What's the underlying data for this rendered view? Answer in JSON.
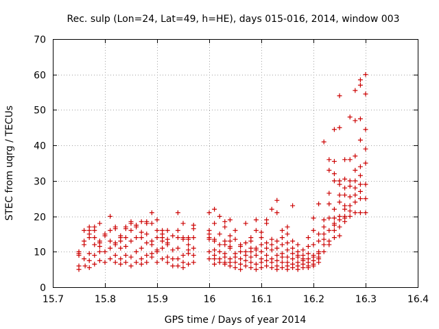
{
  "chart_data": {
    "type": "scatter",
    "title": "Rec. sulp (Lon=24, Lat=49, h=HE), days 015-016, 2014, window 003",
    "xlabel": "GPS time / Days of year 2014",
    "ylabel": "STEC from uqrg / TECUs",
    "xlim": [
      15.7,
      16.4
    ],
    "ylim": [
      0,
      70
    ],
    "x_ticks": [
      15.7,
      15.8,
      15.9,
      16.0,
      16.1,
      16.2,
      16.3,
      16.4
    ],
    "x_tick_labels": [
      "15.7",
      "15.8",
      "15.9",
      "16",
      "16.1",
      "16.2",
      "16.3",
      "16.4"
    ],
    "y_ticks": [
      0,
      10,
      20,
      30,
      40,
      50,
      60,
      70
    ],
    "y_tick_labels": [
      "0",
      "10",
      "20",
      "30",
      "40",
      "50",
      "60",
      "70"
    ],
    "grid": true,
    "marker": "plus",
    "color": "#cc0000",
    "points": [
      [
        15.75,
        5.0
      ],
      [
        15.75,
        6.0
      ],
      [
        15.75,
        9.0
      ],
      [
        15.75,
        9.5
      ],
      [
        15.75,
        10.0
      ],
      [
        15.76,
        8.0
      ],
      [
        15.76,
        12.0
      ],
      [
        15.76,
        13.0
      ],
      [
        15.76,
        16.0
      ],
      [
        15.762,
        6.0
      ],
      [
        15.77,
        5.5
      ],
      [
        15.77,
        7.5
      ],
      [
        15.77,
        9.5
      ],
      [
        15.77,
        14.0
      ],
      [
        15.77,
        15.0
      ],
      [
        15.77,
        16.0
      ],
      [
        15.77,
        17.0
      ],
      [
        15.78,
        6.5
      ],
      [
        15.78,
        9.0
      ],
      [
        15.78,
        14.0
      ],
      [
        15.78,
        16.0
      ],
      [
        15.78,
        17.0
      ],
      [
        15.78,
        12.0
      ],
      [
        15.79,
        7.5
      ],
      [
        15.79,
        10.0
      ],
      [
        15.79,
        11.5
      ],
      [
        15.79,
        12.5
      ],
      [
        15.79,
        13.0
      ],
      [
        15.79,
        18.0
      ],
      [
        15.8,
        7.0
      ],
      [
        15.8,
        10.0
      ],
      [
        15.8,
        14.5
      ],
      [
        15.8,
        15.0
      ],
      [
        15.81,
        8.0
      ],
      [
        15.81,
        11.0
      ],
      [
        15.81,
        13.0
      ],
      [
        15.81,
        16.0
      ],
      [
        15.81,
        20.0
      ],
      [
        15.82,
        7.0
      ],
      [
        15.82,
        9.0
      ],
      [
        15.82,
        12.0
      ],
      [
        15.82,
        12.5
      ],
      [
        15.82,
        16.5
      ],
      [
        15.82,
        17.0
      ],
      [
        15.83,
        6.5
      ],
      [
        15.83,
        8.0
      ],
      [
        15.83,
        11.0
      ],
      [
        15.83,
        13.0
      ],
      [
        15.83,
        14.0
      ],
      [
        15.83,
        14.5
      ],
      [
        15.84,
        7.0
      ],
      [
        15.84,
        9.0
      ],
      [
        15.84,
        11.5
      ],
      [
        15.84,
        16.5
      ],
      [
        15.84,
        17.0
      ],
      [
        15.84,
        14.0
      ],
      [
        15.85,
        6.0
      ],
      [
        15.85,
        8.5
      ],
      [
        15.85,
        13.0
      ],
      [
        15.85,
        16.0
      ],
      [
        15.85,
        18.0
      ],
      [
        15.85,
        18.5
      ],
      [
        15.86,
        7.0
      ],
      [
        15.86,
        10.0
      ],
      [
        15.86,
        14.0
      ],
      [
        15.86,
        17.0
      ],
      [
        15.86,
        17.5
      ],
      [
        15.87,
        6.5
      ],
      [
        15.87,
        8.0
      ],
      [
        15.87,
        11.0
      ],
      [
        15.87,
        14.0
      ],
      [
        15.87,
        15.5
      ],
      [
        15.87,
        18.5
      ],
      [
        15.88,
        7.0
      ],
      [
        15.88,
        9.0
      ],
      [
        15.88,
        12.5
      ],
      [
        15.88,
        15.0
      ],
      [
        15.88,
        18.0
      ],
      [
        15.88,
        18.5
      ],
      [
        15.89,
        8.5
      ],
      [
        15.89,
        9.5
      ],
      [
        15.89,
        12.0
      ],
      [
        15.89,
        13.0
      ],
      [
        15.89,
        18.0
      ],
      [
        15.89,
        21.0
      ],
      [
        15.9,
        7.0
      ],
      [
        15.9,
        10.0
      ],
      [
        15.9,
        10.5
      ],
      [
        15.9,
        14.0
      ],
      [
        15.9,
        16.0
      ],
      [
        15.9,
        19.0
      ],
      [
        15.91,
        8.0
      ],
      [
        15.91,
        11.0
      ],
      [
        15.91,
        13.0
      ],
      [
        15.91,
        14.0
      ],
      [
        15.91,
        16.0
      ],
      [
        15.91,
        15.0
      ],
      [
        15.92,
        7.0
      ],
      [
        15.92,
        8.5
      ],
      [
        15.92,
        12.0
      ],
      [
        15.92,
        12.5
      ],
      [
        15.92,
        13.5
      ],
      [
        15.92,
        16.0
      ],
      [
        15.93,
        8.0
      ],
      [
        15.93,
        10.5
      ],
      [
        15.93,
        14.5
      ],
      [
        15.93,
        6.0
      ],
      [
        15.94,
        6.0
      ],
      [
        15.94,
        8.0
      ],
      [
        15.94,
        11.0
      ],
      [
        15.94,
        14.0
      ],
      [
        15.94,
        21.0
      ],
      [
        15.94,
        16.0
      ],
      [
        15.95,
        5.5
      ],
      [
        15.95,
        7.0
      ],
      [
        15.95,
        9.0
      ],
      [
        15.95,
        13.5
      ],
      [
        15.95,
        14.0
      ],
      [
        15.95,
        18.0
      ],
      [
        15.96,
        6.5
      ],
      [
        15.96,
        9.5
      ],
      [
        15.96,
        10.5
      ],
      [
        15.96,
        12.0
      ],
      [
        15.96,
        13.5
      ],
      [
        15.96,
        14.0
      ],
      [
        15.97,
        7.0
      ],
      [
        15.97,
        9.0
      ],
      [
        15.97,
        11.0
      ],
      [
        15.97,
        14.0
      ],
      [
        15.97,
        16.5
      ],
      [
        15.97,
        17.5
      ],
      [
        16.0,
        8.0
      ],
      [
        16.0,
        10.0
      ],
      [
        16.0,
        13.5
      ],
      [
        16.0,
        14.0
      ],
      [
        16.0,
        15.0
      ],
      [
        16.0,
        16.0
      ],
      [
        16.0,
        21.0
      ],
      [
        16.01,
        6.5
      ],
      [
        16.01,
        8.0
      ],
      [
        16.01,
        9.0
      ],
      [
        16.01,
        10.5
      ],
      [
        16.01,
        13.0
      ],
      [
        16.01,
        13.5
      ],
      [
        16.01,
        22.0
      ],
      [
        16.01,
        18.0
      ],
      [
        16.02,
        7.0
      ],
      [
        16.02,
        8.0
      ],
      [
        16.02,
        10.0
      ],
      [
        16.02,
        12.0
      ],
      [
        16.02,
        15.0
      ],
      [
        16.02,
        20.0
      ],
      [
        16.03,
        6.5
      ],
      [
        16.03,
        7.0
      ],
      [
        16.03,
        8.5
      ],
      [
        16.03,
        9.5
      ],
      [
        16.03,
        12.0
      ],
      [
        16.03,
        13.0
      ],
      [
        16.03,
        17.0
      ],
      [
        16.03,
        18.5
      ],
      [
        16.04,
        6.0
      ],
      [
        16.04,
        7.0
      ],
      [
        16.04,
        8.0
      ],
      [
        16.04,
        11.0
      ],
      [
        16.04,
        11.5
      ],
      [
        16.04,
        13.0
      ],
      [
        16.04,
        14.5
      ],
      [
        16.04,
        19.0
      ],
      [
        16.05,
        5.5
      ],
      [
        16.05,
        7.0
      ],
      [
        16.05,
        8.5
      ],
      [
        16.05,
        9.5
      ],
      [
        16.05,
        13.5
      ],
      [
        16.05,
        16.0
      ],
      [
        16.06,
        5.0
      ],
      [
        16.06,
        6.5
      ],
      [
        16.06,
        8.0
      ],
      [
        16.06,
        10.0
      ],
      [
        16.06,
        11.5
      ],
      [
        16.06,
        12.0
      ],
      [
        16.07,
        6.0
      ],
      [
        16.07,
        7.5
      ],
      [
        16.07,
        9.0
      ],
      [
        16.07,
        10.0
      ],
      [
        16.07,
        12.5
      ],
      [
        16.07,
        18.0
      ],
      [
        16.08,
        5.5
      ],
      [
        16.08,
        7.0
      ],
      [
        16.08,
        8.5
      ],
      [
        16.08,
        10.0
      ],
      [
        16.08,
        11.0
      ],
      [
        16.08,
        13.0
      ],
      [
        16.08,
        14.0
      ],
      [
        16.09,
        5.0
      ],
      [
        16.09,
        6.5
      ],
      [
        16.09,
        9.0
      ],
      [
        16.09,
        10.5
      ],
      [
        16.09,
        11.0
      ],
      [
        16.09,
        19.0
      ],
      [
        16.09,
        16.0
      ],
      [
        16.1,
        5.5
      ],
      [
        16.1,
        7.0
      ],
      [
        16.1,
        8.0
      ],
      [
        16.1,
        10.0
      ],
      [
        16.1,
        12.0
      ],
      [
        16.1,
        14.0
      ],
      [
        16.1,
        15.5
      ],
      [
        16.11,
        6.0
      ],
      [
        16.11,
        7.5
      ],
      [
        16.11,
        9.0
      ],
      [
        16.11,
        11.0
      ],
      [
        16.11,
        12.5
      ],
      [
        16.11,
        19.0
      ],
      [
        16.11,
        18.0
      ],
      [
        16.12,
        5.5
      ],
      [
        16.12,
        7.0
      ],
      [
        16.12,
        8.0
      ],
      [
        16.12,
        10.5
      ],
      [
        16.12,
        12.0
      ],
      [
        16.12,
        13.5
      ],
      [
        16.12,
        22.0
      ],
      [
        16.13,
        5.0
      ],
      [
        16.13,
        6.0
      ],
      [
        16.13,
        7.5
      ],
      [
        16.13,
        9.0
      ],
      [
        16.13,
        11.0
      ],
      [
        16.13,
        13.0
      ],
      [
        16.13,
        21.0
      ],
      [
        16.13,
        24.5
      ],
      [
        16.14,
        5.5
      ],
      [
        16.14,
        7.0
      ],
      [
        16.14,
        8.5
      ],
      [
        16.14,
        9.5
      ],
      [
        16.14,
        12.0
      ],
      [
        16.14,
        14.0
      ],
      [
        16.14,
        16.0
      ],
      [
        16.15,
        5.0
      ],
      [
        16.15,
        6.0
      ],
      [
        16.15,
        7.0
      ],
      [
        16.15,
        8.5
      ],
      [
        16.15,
        10.5
      ],
      [
        16.15,
        12.5
      ],
      [
        16.15,
        15.0
      ],
      [
        16.15,
        17.0
      ],
      [
        16.16,
        5.5
      ],
      [
        16.16,
        6.5
      ],
      [
        16.16,
        8.0
      ],
      [
        16.16,
        9.5
      ],
      [
        16.16,
        11.0
      ],
      [
        16.16,
        13.0
      ],
      [
        16.16,
        23.0
      ],
      [
        16.17,
        5.0
      ],
      [
        16.17,
        6.0
      ],
      [
        16.17,
        7.0
      ],
      [
        16.17,
        8.5
      ],
      [
        16.17,
        9.0
      ],
      [
        16.17,
        10.0
      ],
      [
        16.17,
        12.0
      ],
      [
        16.18,
        5.5
      ],
      [
        16.18,
        6.5
      ],
      [
        16.18,
        7.5
      ],
      [
        16.18,
        8.0
      ],
      [
        16.18,
        9.0
      ],
      [
        16.18,
        10.5
      ],
      [
        16.19,
        5.5
      ],
      [
        16.19,
        6.0
      ],
      [
        16.19,
        7.0
      ],
      [
        16.19,
        8.0
      ],
      [
        16.19,
        9.5
      ],
      [
        16.19,
        11.5
      ],
      [
        16.19,
        14.0
      ],
      [
        16.2,
        6.0
      ],
      [
        16.2,
        6.5
      ],
      [
        16.2,
        7.5
      ],
      [
        16.2,
        8.5
      ],
      [
        16.2,
        9.0
      ],
      [
        16.2,
        12.0
      ],
      [
        16.2,
        16.0
      ],
      [
        16.2,
        19.5
      ],
      [
        16.21,
        7.0
      ],
      [
        16.21,
        8.0
      ],
      [
        16.21,
        8.5
      ],
      [
        16.21,
        9.5
      ],
      [
        16.21,
        10.0
      ],
      [
        16.21,
        13.0
      ],
      [
        16.21,
        15.0
      ],
      [
        16.21,
        23.5
      ],
      [
        16.22,
        10.0
      ],
      [
        16.22,
        12.0
      ],
      [
        16.22,
        13.5
      ],
      [
        16.22,
        15.0
      ],
      [
        16.22,
        17.0
      ],
      [
        16.22,
        19.0
      ],
      [
        16.22,
        41.0
      ],
      [
        16.23,
        12.0
      ],
      [
        16.23,
        13.0
      ],
      [
        16.23,
        16.0
      ],
      [
        16.23,
        19.5
      ],
      [
        16.23,
        23.5
      ],
      [
        16.23,
        26.5
      ],
      [
        16.23,
        33.0
      ],
      [
        16.23,
        36.0
      ],
      [
        16.24,
        14.0
      ],
      [
        16.24,
        16.0
      ],
      [
        16.24,
        17.5
      ],
      [
        16.24,
        18.0
      ],
      [
        16.24,
        19.5
      ],
      [
        16.24,
        22.0
      ],
      [
        16.24,
        30.0
      ],
      [
        16.24,
        32.0
      ],
      [
        16.24,
        35.5
      ],
      [
        16.24,
        44.5
      ],
      [
        16.25,
        14.5
      ],
      [
        16.25,
        17.0
      ],
      [
        16.25,
        19.0
      ],
      [
        16.25,
        20.0
      ],
      [
        16.25,
        24.0
      ],
      [
        16.25,
        26.0
      ],
      [
        16.25,
        29.0
      ],
      [
        16.25,
        30.0
      ],
      [
        16.25,
        45.0
      ],
      [
        16.25,
        54.0
      ],
      [
        16.26,
        18.5
      ],
      [
        16.26,
        19.5
      ],
      [
        16.26,
        20.0
      ],
      [
        16.26,
        22.0
      ],
      [
        16.26,
        23.0
      ],
      [
        16.26,
        26.0
      ],
      [
        16.26,
        28.0
      ],
      [
        16.26,
        30.5
      ],
      [
        16.26,
        36.0
      ],
      [
        16.27,
        20.0
      ],
      [
        16.27,
        21.5
      ],
      [
        16.27,
        23.0
      ],
      [
        16.27,
        25.5
      ],
      [
        16.27,
        28.5
      ],
      [
        16.27,
        30.0
      ],
      [
        16.27,
        36.0
      ],
      [
        16.27,
        48.0
      ],
      [
        16.28,
        21.0
      ],
      [
        16.28,
        24.0
      ],
      [
        16.28,
        26.0
      ],
      [
        16.28,
        28.0
      ],
      [
        16.28,
        30.0
      ],
      [
        16.28,
        33.0
      ],
      [
        16.28,
        37.0
      ],
      [
        16.28,
        47.0
      ],
      [
        16.28,
        55.5
      ],
      [
        16.29,
        21.0
      ],
      [
        16.29,
        25.0
      ],
      [
        16.29,
        27.0
      ],
      [
        16.29,
        29.0
      ],
      [
        16.29,
        31.5
      ],
      [
        16.29,
        34.0
      ],
      [
        16.29,
        41.5
      ],
      [
        16.29,
        47.5
      ],
      [
        16.29,
        57.0
      ],
      [
        16.29,
        58.5
      ],
      [
        16.3,
        21.0
      ],
      [
        16.3,
        25.0
      ],
      [
        16.3,
        29.0
      ],
      [
        16.3,
        35.0
      ],
      [
        16.3,
        39.0
      ],
      [
        16.3,
        44.5
      ],
      [
        16.3,
        54.5
      ],
      [
        16.3,
        60.0
      ]
    ]
  }
}
